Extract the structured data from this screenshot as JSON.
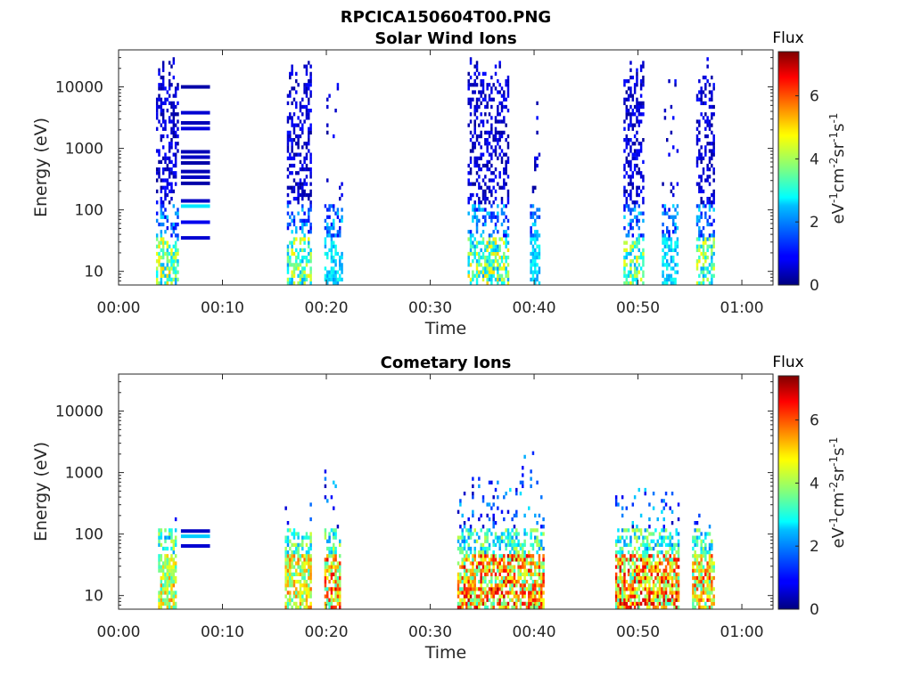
{
  "figure": {
    "title": "RPCICA150604T00.PNG"
  },
  "chart_data": [
    {
      "type": "heatmap",
      "title": "Solar Wind Ions",
      "xlabel": "Time",
      "ylabel": "Energy (eV)",
      "y_scale": "log",
      "xlim_minutes": [
        0,
        63
      ],
      "ylim": [
        6,
        40000
      ],
      "x_ticks": [
        {
          "label": "00:00",
          "minutes": 0
        },
        {
          "label": "00:10",
          "minutes": 10
        },
        {
          "label": "00:20",
          "minutes": 20
        },
        {
          "label": "00:30",
          "minutes": 30
        },
        {
          "label": "00:40",
          "minutes": 40
        },
        {
          "label": "00:50",
          "minutes": 50
        },
        {
          "label": "01:00",
          "minutes": 60
        }
      ],
      "y_ticks": [
        {
          "label": "10",
          "value": 10
        },
        {
          "label": "100",
          "value": 100
        },
        {
          "label": "1000",
          "value": 1000
        },
        {
          "label": "10000",
          "value": 10000
        }
      ],
      "colorbar": {
        "title": "Flux",
        "label": "eV-1cm-2sr-1s-1",
        "range": [
          0,
          7.4
        ],
        "colormap": "jet",
        "ticks": [
          {
            "label": "0",
            "value": 0
          },
          {
            "label": "2",
            "value": 2
          },
          {
            "label": "4",
            "value": 4
          },
          {
            "label": "6",
            "value": 6
          }
        ]
      },
      "clusters": [
        {
          "t_start": 3.6,
          "t_end": 5.8,
          "e_max": 30000,
          "flux_low": 4.2,
          "density": 0.4
        },
        {
          "t_start": 16.2,
          "t_end": 18.6,
          "e_max": 30000,
          "flux_low": 4.0,
          "density": 0.42
        },
        {
          "t_start": 19.8,
          "t_end": 21.6,
          "e_max": 15000,
          "flux_low": 2.2,
          "density": 0.06
        },
        {
          "t_start": 33.6,
          "t_end": 37.6,
          "e_max": 30000,
          "flux_low": 4.2,
          "density": 0.42
        },
        {
          "t_start": 39.6,
          "t_end": 40.6,
          "e_max": 8000,
          "flux_low": 2.2,
          "density": 0.08
        },
        {
          "t_start": 48.6,
          "t_end": 50.6,
          "e_max": 30000,
          "flux_low": 4.2,
          "density": 0.42
        },
        {
          "t_start": 52.3,
          "t_end": 53.8,
          "e_max": 15000,
          "flux_low": 2.2,
          "density": 0.08
        },
        {
          "t_start": 55.6,
          "t_end": 57.3,
          "e_max": 30000,
          "flux_low": 4.0,
          "density": 0.42
        }
      ],
      "segments": [
        {
          "t_start": 6.0,
          "t_end": 8.8,
          "energy": 10000,
          "flux": 0.3
        },
        {
          "t_start": 6.0,
          "t_end": 8.8,
          "energy": 3800,
          "flux": 0.6
        },
        {
          "t_start": 6.0,
          "t_end": 8.8,
          "energy": 2600,
          "flux": 0.4
        },
        {
          "t_start": 6.0,
          "t_end": 8.8,
          "energy": 2100,
          "flux": 0.7
        },
        {
          "t_start": 6.0,
          "t_end": 8.8,
          "energy": 880,
          "flux": 0.4
        },
        {
          "t_start": 6.0,
          "t_end": 8.8,
          "energy": 720,
          "flux": 0.5
        },
        {
          "t_start": 6.0,
          "t_end": 8.8,
          "energy": 580,
          "flux": 0.3
        },
        {
          "t_start": 6.0,
          "t_end": 8.8,
          "energy": 420,
          "flux": 0.4
        },
        {
          "t_start": 6.0,
          "t_end": 8.8,
          "energy": 340,
          "flux": 0.5
        },
        {
          "t_start": 6.0,
          "t_end": 8.8,
          "energy": 270,
          "flux": 0.3
        },
        {
          "t_start": 6.0,
          "t_end": 8.8,
          "energy": 140,
          "flux": 0.5
        },
        {
          "t_start": 6.0,
          "t_end": 8.8,
          "energy": 115,
          "flux": 2.6
        },
        {
          "t_start": 6.0,
          "t_end": 8.8,
          "energy": 63,
          "flux": 0.8
        },
        {
          "t_start": 6.0,
          "t_end": 8.8,
          "energy": 35,
          "flux": 0.6
        }
      ]
    },
    {
      "type": "heatmap",
      "title": "Cometary Ions",
      "xlabel": "Time",
      "ylabel": "Energy (eV)",
      "y_scale": "log",
      "xlim_minutes": [
        0,
        63
      ],
      "ylim": [
        6,
        40000
      ],
      "x_ticks": [
        {
          "label": "00:00",
          "minutes": 0
        },
        {
          "label": "00:10",
          "minutes": 10
        },
        {
          "label": "00:20",
          "minutes": 20
        },
        {
          "label": "00:30",
          "minutes": 30
        },
        {
          "label": "00:40",
          "minutes": 40
        },
        {
          "label": "00:50",
          "minutes": 50
        },
        {
          "label": "01:00",
          "minutes": 60
        }
      ],
      "y_ticks": [
        {
          "label": "10",
          "value": 10
        },
        {
          "label": "100",
          "value": 100
        },
        {
          "label": "1000",
          "value": 1000
        },
        {
          "label": "10000",
          "value": 10000
        }
      ],
      "colorbar": {
        "title": "Flux",
        "label": "eV-1cm-2sr-1s-1",
        "range": [
          0,
          7.4
        ],
        "colormap": "jet",
        "ticks": [
          {
            "label": "0",
            "value": 0
          },
          {
            "label": "2",
            "value": 2
          },
          {
            "label": "4",
            "value": 4
          },
          {
            "label": "6",
            "value": 6
          }
        ]
      },
      "clusters": [
        {
          "t_start": 3.8,
          "t_end": 5.6,
          "e_max": 200,
          "flux_peak": 5.6,
          "density": 0.5
        },
        {
          "t_start": 16.0,
          "t_end": 18.6,
          "e_max": 600,
          "flux_peak": 5.8,
          "density": 0.45
        },
        {
          "t_start": 19.8,
          "t_end": 21.3,
          "e_max": 1200,
          "flux_peak": 6.8,
          "density": 0.55
        },
        {
          "t_start": 32.6,
          "t_end": 38.6,
          "e_max": 1400,
          "flux_peak": 7.0,
          "density": 0.5
        },
        {
          "t_start": 38.6,
          "t_end": 41.0,
          "e_max": 2800,
          "flux_peak": 6.6,
          "density": 0.5
        },
        {
          "t_start": 47.8,
          "t_end": 54.0,
          "e_max": 900,
          "flux_peak": 7.0,
          "density": 0.5
        },
        {
          "t_start": 55.2,
          "t_end": 57.3,
          "e_max": 300,
          "flux_peak": 6.4,
          "density": 0.5
        }
      ],
      "segments": [
        {
          "t_start": 6.0,
          "t_end": 8.8,
          "energy": 112,
          "flux": 0.5
        },
        {
          "t_start": 6.0,
          "t_end": 8.8,
          "energy": 92,
          "flux": 2.4
        },
        {
          "t_start": 6.0,
          "t_end": 8.8,
          "energy": 64,
          "flux": 0.6
        }
      ]
    }
  ]
}
